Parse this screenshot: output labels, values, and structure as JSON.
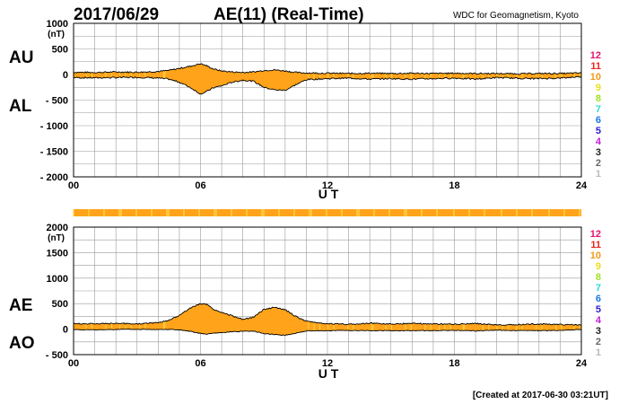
{
  "header": {
    "date": "2017/06/29",
    "title": "AE(11) (Real-Time)",
    "source": "WDC for Geomagnetism, Kyoto"
  },
  "footer": {
    "created": "[Created at 2017-06-30 03:21UT]"
  },
  "colors": {
    "fill": "#ffa31a",
    "quiet_fill": "#ffd84d",
    "grid": "#9a9a9a",
    "line": "#000000"
  },
  "station_legend": [
    {
      "label": "12",
      "color": "#e8136f"
    },
    {
      "label": "11",
      "color": "#e6261f"
    },
    {
      "label": "10",
      "color": "#f39a1d"
    },
    {
      "label": "9",
      "color": "#e8df1a"
    },
    {
      "label": "8",
      "color": "#9fe31f"
    },
    {
      "label": "7",
      "color": "#2fd7d7"
    },
    {
      "label": "6",
      "color": "#1e78e6"
    },
    {
      "label": "5",
      "color": "#2a1fd0"
    },
    {
      "label": "4",
      "color": "#c21fd9"
    },
    {
      "label": "3",
      "color": "#222222"
    },
    {
      "label": "2",
      "color": "#666666"
    },
    {
      "label": "1",
      "color": "#bbbbbb"
    }
  ],
  "chart_data": [
    {
      "type": "area",
      "panel": "AU/AL",
      "labels": {
        "upper": "AU",
        "lower": "AL"
      },
      "unit": "(nT)",
      "xlabel": "U T",
      "x_ticks": [
        "00",
        "06",
        "12",
        "18",
        "24"
      ],
      "y_ticks": [
        "1000",
        "500",
        "0",
        "- 500",
        "- 1000",
        "- 1500",
        "- 2000"
      ],
      "y_tick_values": [
        1000,
        500,
        0,
        -500,
        -1000,
        -1500,
        -2000
      ],
      "xlim": [
        0,
        24
      ],
      "ylim": [
        -2000,
        1000
      ],
      "grid": true,
      "series": [
        {
          "name": "AU",
          "x": [
            0,
            1,
            2,
            3,
            4,
            4.5,
            5,
            5.5,
            6,
            6.3,
            6.6,
            7,
            7.5,
            8,
            8.5,
            9,
            9.5,
            10,
            10.5,
            11,
            12,
            13,
            14,
            15,
            16,
            17,
            18,
            19,
            20,
            21,
            22,
            23,
            24
          ],
          "values": [
            45,
            40,
            50,
            45,
            60,
            80,
            120,
            160,
            210,
            170,
            110,
            70,
            50,
            40,
            50,
            80,
            90,
            70,
            40,
            30,
            25,
            20,
            25,
            20,
            25,
            20,
            25,
            20,
            20,
            15,
            20,
            20,
            30
          ]
        },
        {
          "name": "AL",
          "x": [
            0,
            1,
            2,
            3,
            4,
            4.5,
            5,
            5.5,
            6,
            6.3,
            6.6,
            7,
            7.5,
            8,
            8.5,
            9,
            9.5,
            10,
            10.5,
            11,
            12,
            13,
            14,
            15,
            16,
            17,
            18,
            19,
            20,
            21,
            22,
            23,
            24
          ],
          "values": [
            -60,
            -65,
            -60,
            -55,
            -70,
            -90,
            -150,
            -250,
            -380,
            -330,
            -260,
            -220,
            -150,
            -110,
            -130,
            -250,
            -300,
            -310,
            -200,
            -100,
            -80,
            -70,
            -90,
            -80,
            -90,
            -80,
            -70,
            -90,
            -60,
            -75,
            -80,
            -70,
            -40
          ]
        }
      ]
    },
    {
      "type": "area",
      "panel": "AE/AO",
      "labels": {
        "upper": "AE",
        "lower": "AO"
      },
      "unit": "(nT)",
      "xlabel": "U T",
      "x_ticks": [
        "00",
        "06",
        "12",
        "18",
        "24"
      ],
      "y_ticks": [
        "2000",
        "1500",
        "1000",
        "500",
        "0",
        "- 500"
      ],
      "y_tick_values": [
        2000,
        1500,
        1000,
        500,
        0,
        -500
      ],
      "xlim": [
        0,
        24
      ],
      "ylim": [
        -500,
        2000
      ],
      "grid": true,
      "series": [
        {
          "name": "AE",
          "x": [
            0,
            1,
            2,
            3,
            4,
            4.5,
            5,
            5.5,
            6,
            6.3,
            6.6,
            7,
            7.5,
            8,
            8.5,
            9,
            9.5,
            10,
            10.5,
            11,
            12,
            13,
            14,
            15,
            16,
            17,
            18,
            19,
            20,
            21,
            22,
            23,
            24
          ],
          "values": [
            105,
            105,
            110,
            100,
            130,
            170,
            270,
            410,
            500,
            480,
            390,
            320,
            260,
            190,
            230,
            390,
            430,
            380,
            250,
            150,
            105,
            95,
            115,
            100,
            115,
            100,
            95,
            110,
            80,
            90,
            100,
            90,
            80
          ]
        },
        {
          "name": "AO",
          "x": [
            0,
            1,
            2,
            3,
            4,
            4.5,
            5,
            5.5,
            6,
            6.3,
            6.6,
            7,
            7.5,
            8,
            8.5,
            9,
            9.5,
            10,
            10.5,
            11,
            12,
            13,
            14,
            15,
            16,
            17,
            18,
            19,
            20,
            21,
            22,
            23,
            24
          ],
          "values": [
            -10,
            -15,
            -5,
            -5,
            -5,
            -5,
            -15,
            -45,
            -85,
            -100,
            -80,
            -70,
            -50,
            -40,
            -40,
            -85,
            -105,
            -120,
            -80,
            -35,
            -30,
            -25,
            -30,
            -30,
            -30,
            -30,
            -25,
            -35,
            -20,
            -30,
            -30,
            -25,
            -5
          ]
        }
      ]
    }
  ]
}
